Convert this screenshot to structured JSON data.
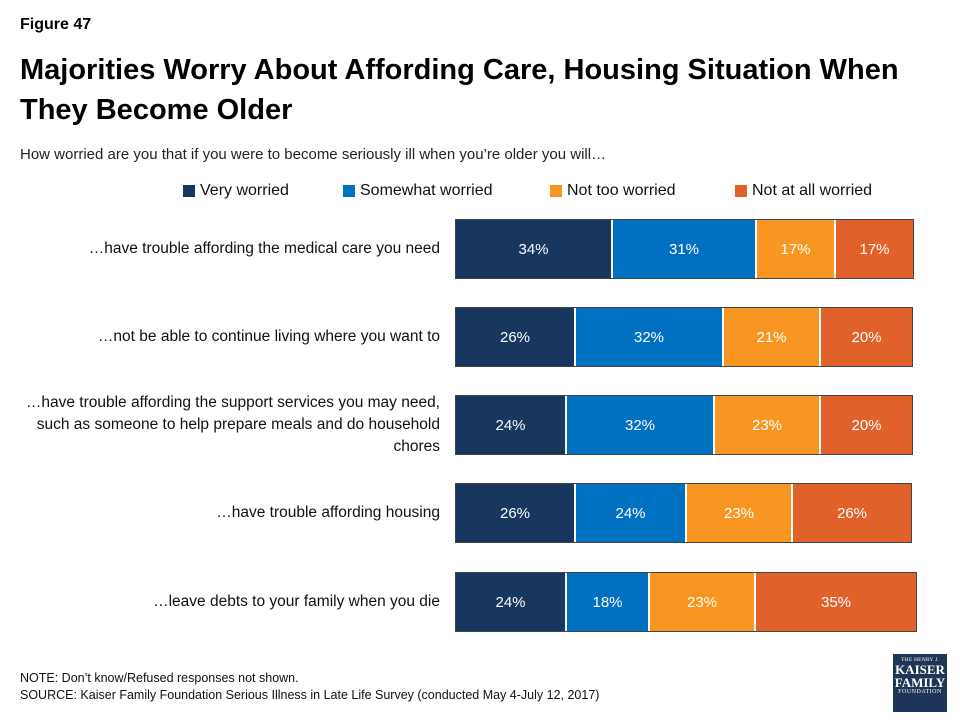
{
  "figure_label": "Figure 47",
  "title": "Majorities Worry About Affording Care, Housing Situation When They Become Older",
  "subtitle": "How worried are you that if you were to become seriously ill when you’re older you will…",
  "note": "NOTE: Don’t know/Refused responses not shown.",
  "source": "SOURCE: Kaiser Family Foundation Serious Illness in Late Life Survey (conducted May 4-July 12, 2017)",
  "logo": {
    "line1": "THE HENRY J.",
    "line2": "KAISER",
    "line3": "FAMILY",
    "line4": "FOUNDATION"
  },
  "colors": {
    "very_worried": "#17375e",
    "somewhat_worried": "#0070c0",
    "not_too_worried": "#f79622",
    "not_at_all_worried": "#e06129"
  },
  "chart_data": {
    "type": "bar",
    "orientation": "horizontal",
    "stacked": true,
    "xlim": [
      0,
      100
    ],
    "legend_position": "top",
    "categories": [
      "…have trouble affording the medical care you need",
      "…not be able to continue living where you want to",
      "…have trouble affording the support services you may need, such as someone to help prepare meals and do household chores",
      "…have trouble affording housing",
      "…leave debts to your family when you die"
    ],
    "series": [
      {
        "name": "Very worried",
        "color": "#17375e",
        "values": [
          34,
          26,
          24,
          26,
          24
        ],
        "labels": [
          "34%",
          "26%",
          "24%",
          "26%",
          "24%"
        ]
      },
      {
        "name": "Somewhat worried",
        "color": "#0070c0",
        "values": [
          31,
          32,
          32,
          24,
          18
        ],
        "labels": [
          "31%",
          "32%",
          "32%",
          "24%",
          "18%"
        ]
      },
      {
        "name": "Not too worried",
        "color": "#f79622",
        "values": [
          17,
          21,
          23,
          23,
          23
        ],
        "labels": [
          "17%",
          "21%",
          "23%",
          "23%",
          "23%"
        ]
      },
      {
        "name": "Not at all worried",
        "color": "#e06129",
        "values": [
          17,
          20,
          20,
          26,
          35
        ],
        "labels": [
          "17%",
          "20%",
          "20%",
          "26%",
          "35%"
        ]
      }
    ]
  }
}
